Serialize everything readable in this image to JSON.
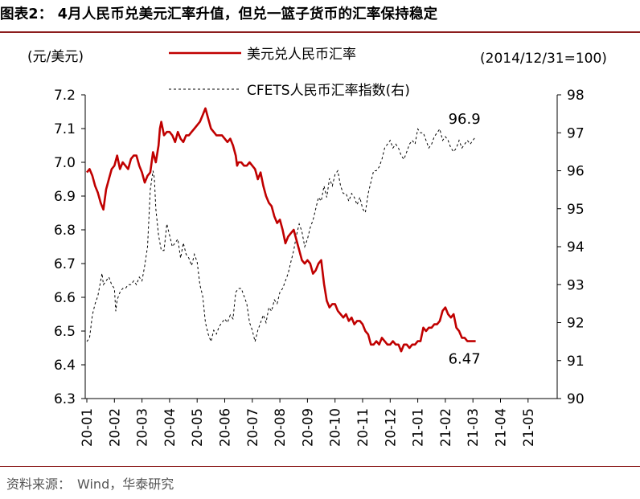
{
  "figure": {
    "title": "图表2：  4月人民币兑美元汇率升值，但兑一篮子货币的汇率保持稳定",
    "source_label": "资料来源：",
    "source_text": "Wind，华泰研究",
    "rule_color": "#8c1d1d"
  },
  "chart_data": {
    "type": "line",
    "title": "",
    "left_unit": "(元/美元)",
    "right_unit": "(2014/12/31=100)",
    "y_left": {
      "min": 6.3,
      "max": 7.2,
      "ticks": [
        6.3,
        6.4,
        6.5,
        6.6,
        6.7,
        6.8,
        6.9,
        7.0,
        7.1,
        7.2
      ],
      "tick_labels": [
        "6.3",
        "6.4",
        "6.5",
        "6.6",
        "6.7",
        "6.8",
        "6.9",
        "7.0",
        "7.1",
        "7.2"
      ]
    },
    "y_right": {
      "min": 90,
      "max": 98,
      "ticks": [
        90,
        91,
        92,
        93,
        94,
        95,
        96,
        97,
        98
      ],
      "tick_labels": [
        "90",
        "91",
        "92",
        "93",
        "94",
        "95",
        "96",
        "97",
        "98"
      ]
    },
    "x_range": [
      0,
      16.2
    ],
    "x_ticks": [
      "20-01",
      "20-02",
      "20-03",
      "20-04",
      "20-05",
      "20-06",
      "20-07",
      "20-08",
      "20-09",
      "20-10",
      "20-11",
      "20-12",
      "21-01",
      "21-02",
      "21-03",
      "21-04",
      "21-05"
    ],
    "series": [
      {
        "name": "美元兑人民币汇率",
        "axis": "left",
        "color": "#c00000",
        "style": "solid",
        "points": [
          [
            0.0,
            6.97
          ],
          [
            0.1,
            6.98
          ],
          [
            0.2,
            6.96
          ],
          [
            0.3,
            6.93
          ],
          [
            0.4,
            6.91
          ],
          [
            0.5,
            6.88
          ],
          [
            0.6,
            6.86
          ],
          [
            0.7,
            6.92
          ],
          [
            0.8,
            6.95
          ],
          [
            0.9,
            6.98
          ],
          [
            1.0,
            6.99
          ],
          [
            1.1,
            7.02
          ],
          [
            1.2,
            6.98
          ],
          [
            1.3,
            7.0
          ],
          [
            1.4,
            6.99
          ],
          [
            1.5,
            6.98
          ],
          [
            1.6,
            7.01
          ],
          [
            1.7,
            7.02
          ],
          [
            1.8,
            7.02
          ],
          [
            1.9,
            6.99
          ],
          [
            2.0,
            6.97
          ],
          [
            2.1,
            6.94
          ],
          [
            2.2,
            6.96
          ],
          [
            2.3,
            6.97
          ],
          [
            2.4,
            7.03
          ],
          [
            2.5,
            7.0
          ],
          [
            2.6,
            7.05
          ],
          [
            2.65,
            7.1
          ],
          [
            2.7,
            7.12
          ],
          [
            2.8,
            7.08
          ],
          [
            2.9,
            7.09
          ],
          [
            3.0,
            7.09
          ],
          [
            3.1,
            7.08
          ],
          [
            3.2,
            7.06
          ],
          [
            3.3,
            7.09
          ],
          [
            3.4,
            7.07
          ],
          [
            3.5,
            7.06
          ],
          [
            3.6,
            7.08
          ],
          [
            3.7,
            7.08
          ],
          [
            3.8,
            7.09
          ],
          [
            3.9,
            7.1
          ],
          [
            4.0,
            7.11
          ],
          [
            4.1,
            7.12
          ],
          [
            4.2,
            7.14
          ],
          [
            4.3,
            7.16
          ],
          [
            4.4,
            7.13
          ],
          [
            4.5,
            7.1
          ],
          [
            4.6,
            7.09
          ],
          [
            4.7,
            7.08
          ],
          [
            4.8,
            7.08
          ],
          [
            4.9,
            7.08
          ],
          [
            5.0,
            7.07
          ],
          [
            5.1,
            7.06
          ],
          [
            5.2,
            7.07
          ],
          [
            5.3,
            7.05
          ],
          [
            5.4,
            7.02
          ],
          [
            5.45,
            6.99
          ],
          [
            5.5,
            7.0
          ],
          [
            5.6,
            7.0
          ],
          [
            5.7,
            6.99
          ],
          [
            5.8,
            6.99
          ],
          [
            5.9,
            7.0
          ],
          [
            6.0,
            6.99
          ],
          [
            6.1,
            6.98
          ],
          [
            6.2,
            6.95
          ],
          [
            6.3,
            6.97
          ],
          [
            6.4,
            6.93
          ],
          [
            6.5,
            6.9
          ],
          [
            6.6,
            6.88
          ],
          [
            6.7,
            6.87
          ],
          [
            6.8,
            6.84
          ],
          [
            6.9,
            6.82
          ],
          [
            7.0,
            6.83
          ],
          [
            7.1,
            6.8
          ],
          [
            7.2,
            6.76
          ],
          [
            7.3,
            6.78
          ],
          [
            7.4,
            6.79
          ],
          [
            7.5,
            6.8
          ],
          [
            7.6,
            6.77
          ],
          [
            7.7,
            6.74
          ],
          [
            7.8,
            6.71
          ],
          [
            7.9,
            6.7
          ],
          [
            8.0,
            6.71
          ],
          [
            8.1,
            6.7
          ],
          [
            8.2,
            6.67
          ],
          [
            8.3,
            6.68
          ],
          [
            8.4,
            6.7
          ],
          [
            8.5,
            6.71
          ],
          [
            8.6,
            6.64
          ],
          [
            8.7,
            6.59
          ],
          [
            8.8,
            6.57
          ],
          [
            8.9,
            6.58
          ],
          [
            9.0,
            6.58
          ],
          [
            9.1,
            6.56
          ],
          [
            9.2,
            6.55
          ],
          [
            9.3,
            6.54
          ],
          [
            9.4,
            6.55
          ],
          [
            9.5,
            6.53
          ],
          [
            9.6,
            6.54
          ],
          [
            9.7,
            6.52
          ],
          [
            9.8,
            6.53
          ],
          [
            9.9,
            6.53
          ],
          [
            10.0,
            6.52
          ],
          [
            10.1,
            6.5
          ],
          [
            10.2,
            6.49
          ],
          [
            10.3,
            6.46
          ],
          [
            10.4,
            6.46
          ],
          [
            10.5,
            6.47
          ],
          [
            10.6,
            6.46
          ],
          [
            10.7,
            6.48
          ],
          [
            10.8,
            6.47
          ],
          [
            10.9,
            6.46
          ],
          [
            11.0,
            6.46
          ],
          [
            11.1,
            6.47
          ],
          [
            11.2,
            6.46
          ],
          [
            11.3,
            6.46
          ],
          [
            11.4,
            6.44
          ],
          [
            11.5,
            6.46
          ],
          [
            11.6,
            6.46
          ],
          [
            11.7,
            6.45
          ],
          [
            11.8,
            6.46
          ],
          [
            11.9,
            6.46
          ],
          [
            12.0,
            6.47
          ],
          [
            12.1,
            6.47
          ],
          [
            12.2,
            6.51
          ],
          [
            12.3,
            6.5
          ],
          [
            12.4,
            6.51
          ],
          [
            12.5,
            6.51
          ],
          [
            12.6,
            6.52
          ],
          [
            12.7,
            6.52
          ],
          [
            12.8,
            6.53
          ],
          [
            12.9,
            6.56
          ],
          [
            13.0,
            6.57
          ],
          [
            13.1,
            6.55
          ],
          [
            13.2,
            6.54
          ],
          [
            13.3,
            6.55
          ],
          [
            13.4,
            6.51
          ],
          [
            13.5,
            6.5
          ],
          [
            13.6,
            6.48
          ],
          [
            13.7,
            6.48
          ],
          [
            13.8,
            6.47
          ],
          [
            13.9,
            6.47
          ],
          [
            14.0,
            6.47
          ],
          [
            14.1,
            6.47
          ]
        ]
      },
      {
        "name": "CFETS人民币汇率指数(右)",
        "axis": "right",
        "color": "#000000",
        "style": "dashed",
        "points": [
          [
            0.0,
            91.5
          ],
          [
            0.1,
            91.6
          ],
          [
            0.2,
            92.2
          ],
          [
            0.3,
            92.5
          ],
          [
            0.4,
            92.7
          ],
          [
            0.5,
            93.1
          ],
          [
            0.55,
            93.3
          ],
          [
            0.6,
            93.0
          ],
          [
            0.7,
            93.1
          ],
          [
            0.8,
            93.2
          ],
          [
            0.9,
            93.0
          ],
          [
            1.0,
            92.9
          ],
          [
            1.05,
            92.3
          ],
          [
            1.1,
            92.6
          ],
          [
            1.2,
            92.8
          ],
          [
            1.3,
            92.9
          ],
          [
            1.4,
            92.9
          ],
          [
            1.5,
            93.0
          ],
          [
            1.6,
            93.0
          ],
          [
            1.7,
            93.1
          ],
          [
            1.8,
            93.0
          ],
          [
            1.9,
            93.2
          ],
          [
            2.0,
            93.1
          ],
          [
            2.1,
            93.5
          ],
          [
            2.2,
            94.0
          ],
          [
            2.3,
            95.5
          ],
          [
            2.4,
            96.0
          ],
          [
            2.45,
            95.8
          ],
          [
            2.5,
            95.0
          ],
          [
            2.6,
            94.3
          ],
          [
            2.7,
            93.9
          ],
          [
            2.8,
            93.9
          ],
          [
            2.9,
            94.6
          ],
          [
            3.0,
            94.3
          ],
          [
            3.1,
            94.0
          ],
          [
            3.2,
            94.1
          ],
          [
            3.3,
            94.2
          ],
          [
            3.4,
            93.7
          ],
          [
            3.5,
            94.1
          ],
          [
            3.6,
            93.8
          ],
          [
            3.7,
            93.7
          ],
          [
            3.8,
            93.5
          ],
          [
            3.9,
            93.8
          ],
          [
            4.0,
            93.6
          ],
          [
            4.1,
            93.0
          ],
          [
            4.2,
            92.7
          ],
          [
            4.3,
            92.0
          ],
          [
            4.4,
            91.7
          ],
          [
            4.5,
            91.5
          ],
          [
            4.6,
            91.8
          ],
          [
            4.7,
            91.7
          ],
          [
            4.8,
            91.9
          ],
          [
            4.9,
            92.0
          ],
          [
            5.0,
            92.1
          ],
          [
            5.1,
            92.0
          ],
          [
            5.2,
            92.2
          ],
          [
            5.3,
            92.1
          ],
          [
            5.4,
            92.8
          ],
          [
            5.5,
            92.9
          ],
          [
            5.6,
            92.9
          ],
          [
            5.7,
            92.7
          ],
          [
            5.8,
            92.5
          ],
          [
            5.9,
            92.0
          ],
          [
            6.0,
            91.8
          ],
          [
            6.1,
            91.5
          ],
          [
            6.2,
            91.8
          ],
          [
            6.3,
            92.0
          ],
          [
            6.4,
            92.2
          ],
          [
            6.5,
            92.0
          ],
          [
            6.6,
            92.4
          ],
          [
            6.7,
            92.3
          ],
          [
            6.8,
            92.6
          ],
          [
            6.9,
            92.5
          ],
          [
            7.0,
            92.8
          ],
          [
            7.1,
            92.9
          ],
          [
            7.2,
            93.1
          ],
          [
            7.3,
            93.3
          ],
          [
            7.4,
            93.6
          ],
          [
            7.5,
            93.9
          ],
          [
            7.6,
            94.3
          ],
          [
            7.7,
            94.6
          ],
          [
            7.8,
            94.4
          ],
          [
            7.9,
            94.0
          ],
          [
            8.0,
            94.2
          ],
          [
            8.1,
            94.5
          ],
          [
            8.2,
            94.7
          ],
          [
            8.3,
            95.0
          ],
          [
            8.4,
            95.3
          ],
          [
            8.5,
            95.2
          ],
          [
            8.6,
            95.6
          ],
          [
            8.7,
            95.3
          ],
          [
            8.8,
            95.8
          ],
          [
            8.9,
            95.6
          ],
          [
            9.0,
            95.9
          ],
          [
            9.1,
            96.0
          ],
          [
            9.2,
            95.6
          ],
          [
            9.3,
            95.4
          ],
          [
            9.4,
            95.4
          ],
          [
            9.5,
            95.2
          ],
          [
            9.6,
            95.4
          ],
          [
            9.7,
            95.3
          ],
          [
            9.8,
            95.1
          ],
          [
            9.9,
            95.3
          ],
          [
            10.0,
            95.0
          ],
          [
            10.1,
            94.9
          ],
          [
            10.2,
            95.4
          ],
          [
            10.3,
            95.7
          ],
          [
            10.4,
            96.0
          ],
          [
            10.5,
            96.0
          ],
          [
            10.6,
            96.1
          ],
          [
            10.7,
            96.3
          ],
          [
            10.8,
            96.6
          ],
          [
            10.9,
            96.7
          ],
          [
            11.0,
            96.8
          ],
          [
            11.1,
            96.6
          ],
          [
            11.2,
            96.7
          ],
          [
            11.3,
            96.6
          ],
          [
            11.4,
            96.4
          ],
          [
            11.5,
            96.3
          ],
          [
            11.6,
            96.5
          ],
          [
            11.7,
            96.7
          ],
          [
            11.8,
            96.8
          ],
          [
            11.9,
            96.7
          ],
          [
            12.0,
            97.1
          ],
          [
            12.1,
            97.0
          ],
          [
            12.2,
            97.0
          ],
          [
            12.3,
            96.8
          ],
          [
            12.4,
            96.6
          ],
          [
            12.5,
            96.7
          ],
          [
            12.6,
            96.9
          ],
          [
            12.7,
            97.0
          ],
          [
            12.8,
            97.1
          ],
          [
            12.9,
            96.8
          ],
          [
            13.0,
            96.9
          ],
          [
            13.1,
            96.8
          ],
          [
            13.2,
            96.6
          ],
          [
            13.3,
            96.5
          ],
          [
            13.4,
            96.6
          ],
          [
            13.5,
            96.8
          ],
          [
            13.6,
            96.6
          ],
          [
            13.7,
            96.7
          ],
          [
            13.8,
            96.8
          ],
          [
            13.9,
            96.7
          ],
          [
            14.0,
            96.8
          ],
          [
            14.1,
            96.9
          ]
        ]
      }
    ],
    "annotations": [
      {
        "text": "96.9",
        "x": 14.1,
        "y": 96.9,
        "axis": "right"
      },
      {
        "text": "6.47",
        "x": 14.1,
        "y": 6.47,
        "axis": "left"
      }
    ]
  }
}
